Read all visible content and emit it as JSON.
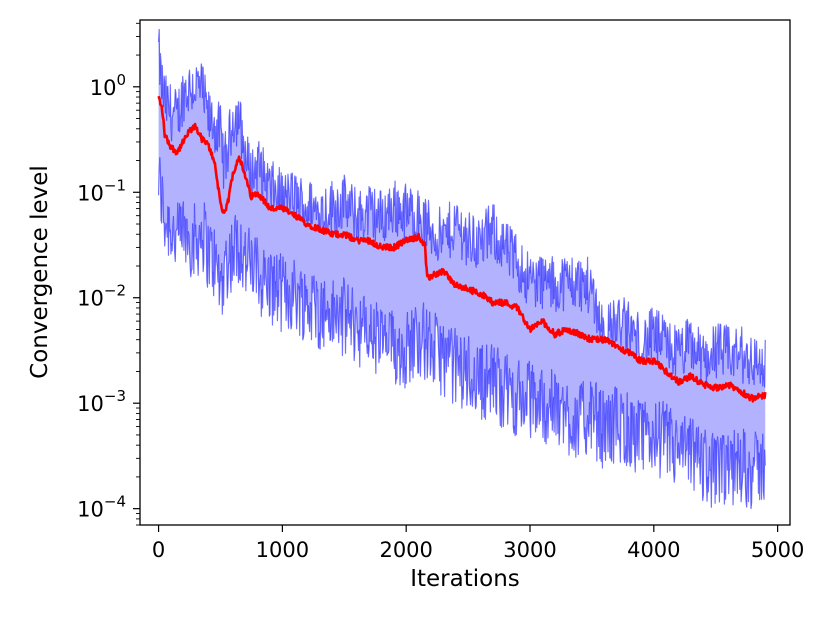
{
  "chart_data": {
    "type": "area",
    "xlabel": "Iterations",
    "ylabel": "Convergence level",
    "xlim": [
      -150,
      5100
    ],
    "ylim": [
      7e-05,
      4.3
    ],
    "yscale": "log",
    "grid": false,
    "xticks": [
      0,
      1000,
      2000,
      3000,
      4000,
      5000
    ],
    "xtick_labels": [
      "0",
      "1000",
      "2000",
      "3000",
      "4000",
      "5000"
    ],
    "yticks": [
      0.0001,
      0.001,
      0.01,
      0.1,
      1
    ],
    "ytick_labels": [
      {
        "base": "10",
        "exp": "−4"
      },
      {
        "base": "10",
        "exp": "−3"
      },
      {
        "base": "10",
        "exp": "−2"
      },
      {
        "base": "10",
        "exp": "−1"
      },
      {
        "base": "10",
        "exp": "0"
      }
    ],
    "series": [
      {
        "role": "median",
        "color": "#ff0000",
        "x": [
          0,
          30,
          50,
          100,
          150,
          200,
          250,
          300,
          350,
          400,
          450,
          500,
          530,
          560,
          600,
          650,
          700,
          750,
          800,
          900,
          1000,
          1100,
          1200,
          1300,
          1400,
          1500,
          1600,
          1700,
          1800,
          1900,
          2000,
          2100,
          2150,
          2170,
          2200,
          2300,
          2400,
          2500,
          2600,
          2700,
          2800,
          2900,
          3000,
          3100,
          3200,
          3300,
          3400,
          3500,
          3600,
          3700,
          3800,
          3900,
          4000,
          4100,
          4200,
          4300,
          4400,
          4500,
          4600,
          4700,
          4800,
          4900
        ],
        "y": [
          0.8,
          0.6,
          0.35,
          0.27,
          0.24,
          0.3,
          0.38,
          0.42,
          0.32,
          0.28,
          0.2,
          0.08,
          0.06,
          0.08,
          0.15,
          0.22,
          0.14,
          0.09,
          0.1,
          0.07,
          0.07,
          0.06,
          0.05,
          0.045,
          0.04,
          0.04,
          0.035,
          0.035,
          0.03,
          0.03,
          0.035,
          0.038,
          0.032,
          0.015,
          0.016,
          0.018,
          0.013,
          0.012,
          0.011,
          0.009,
          0.009,
          0.008,
          0.005,
          0.006,
          0.0045,
          0.005,
          0.0045,
          0.004,
          0.004,
          0.0035,
          0.003,
          0.0025,
          0.0025,
          0.002,
          0.0016,
          0.0018,
          0.0015,
          0.0014,
          0.0015,
          0.0013,
          0.0011,
          0.0012
        ]
      },
      {
        "role": "upper",
        "color": "#0000ff",
        "x": [
          0,
          20,
          50,
          100,
          150,
          200,
          250,
          300,
          350,
          400,
          450,
          500,
          530,
          560,
          600,
          650,
          700,
          750,
          800,
          900,
          1000,
          1100,
          1200,
          1300,
          1400,
          1500,
          1600,
          1700,
          1800,
          1900,
          2000,
          2100,
          2200,
          2300,
          2400,
          2500,
          2600,
          2700,
          2800,
          2900,
          3000,
          3100,
          3200,
          3300,
          3400,
          3500,
          3600,
          3700,
          3800,
          3900,
          4000,
          4100,
          4200,
          4300,
          4400,
          4500,
          4600,
          4700,
          4800,
          4900
        ],
        "y": [
          3.0,
          1.6,
          1.0,
          0.8,
          0.7,
          1.2,
          1.35,
          1.4,
          1.3,
          0.7,
          0.6,
          0.5,
          0.25,
          0.35,
          0.7,
          0.7,
          0.3,
          0.2,
          0.25,
          0.15,
          0.12,
          0.12,
          0.1,
          0.09,
          0.1,
          0.11,
          0.08,
          0.09,
          0.08,
          0.1,
          0.09,
          0.08,
          0.06,
          0.05,
          0.07,
          0.05,
          0.045,
          0.06,
          0.04,
          0.03,
          0.02,
          0.02,
          0.018,
          0.02,
          0.019,
          0.017,
          0.006,
          0.008,
          0.007,
          0.005,
          0.006,
          0.005,
          0.004,
          0.005,
          0.0035,
          0.0045,
          0.004,
          0.004,
          0.0035,
          0.003
        ]
      },
      {
        "role": "lower",
        "color": "#0000ff",
        "x": [
          0,
          50,
          100,
          150,
          200,
          250,
          300,
          350,
          400,
          450,
          500,
          550,
          600,
          650,
          700,
          750,
          800,
          900,
          1000,
          1100,
          1200,
          1300,
          1400,
          1500,
          1600,
          1700,
          1800,
          1900,
          2000,
          2100,
          2200,
          2300,
          2400,
          2500,
          2600,
          2700,
          2800,
          2900,
          3000,
          3100,
          3200,
          3300,
          3400,
          3500,
          3600,
          3700,
          3800,
          3900,
          4000,
          4100,
          4200,
          4300,
          4400,
          4500,
          4600,
          4700,
          4800,
          4900
        ],
        "y": [
          0.12,
          0.05,
          0.045,
          0.03,
          0.04,
          0.035,
          0.03,
          0.04,
          0.025,
          0.02,
          0.012,
          0.02,
          0.025,
          0.03,
          0.02,
          0.018,
          0.015,
          0.012,
          0.01,
          0.01,
          0.008,
          0.007,
          0.006,
          0.006,
          0.005,
          0.004,
          0.0035,
          0.003,
          0.003,
          0.004,
          0.003,
          0.0025,
          0.002,
          0.0018,
          0.0015,
          0.0015,
          0.0012,
          0.001,
          0.001,
          0.0009,
          0.0008,
          0.0007,
          0.0006,
          0.0007,
          0.0005,
          0.0006,
          0.0005,
          0.0004,
          0.00045,
          0.0004,
          0.0003,
          0.0003,
          0.00025,
          0.0002,
          0.0002,
          0.00025,
          0.0002,
          0.00025
        ]
      }
    ]
  }
}
